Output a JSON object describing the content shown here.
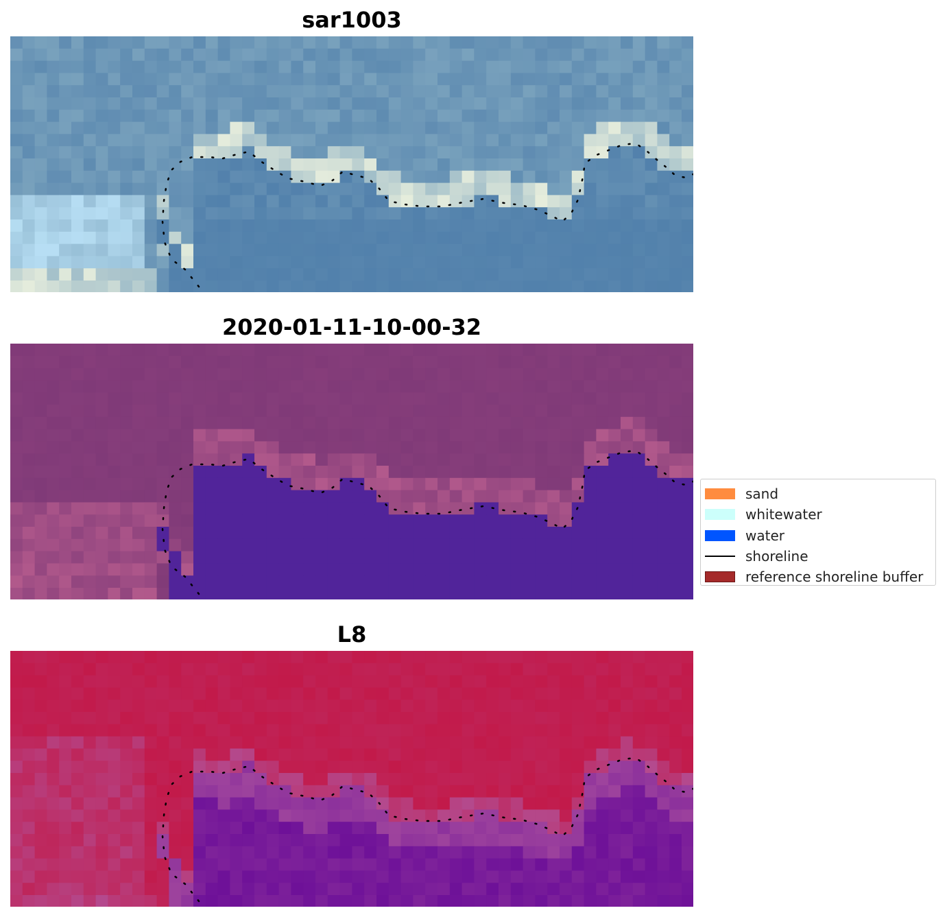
{
  "panels": [
    {
      "title": "sar1003",
      "palette": "rgb"
    },
    {
      "title": "2020-01-11-10-00-32",
      "palette": "classified"
    },
    {
      "title": "L8",
      "palette": "ndwi"
    }
  ],
  "legend": {
    "items": [
      {
        "label": "sand",
        "color": "#ff8c3f",
        "kind": "patch"
      },
      {
        "label": "whitewater",
        "color": "#ccfffb",
        "kind": "patch"
      },
      {
        "label": "water",
        "color": "#0055ff",
        "kind": "patch"
      },
      {
        "label": "shoreline",
        "color": "#000000",
        "kind": "line"
      },
      {
        "label": "reference shoreline buffer",
        "color": "#a52a2a",
        "kind": "patch"
      }
    ]
  },
  "colors": {
    "rgb_deep": "#4a7aa8",
    "rgb_shallow": "#7ea6bf",
    "rgb_foam": "#f3f6e0",
    "rgb_light": "#bfe6fb",
    "class_water": "#51249a",
    "class_land": "#803a78",
    "class_edge": "#b85d8e",
    "ndwi_land": "#c21a4a",
    "ndwi_water": "#6a0d98",
    "ndwi_edge": "#b0569f"
  }
}
